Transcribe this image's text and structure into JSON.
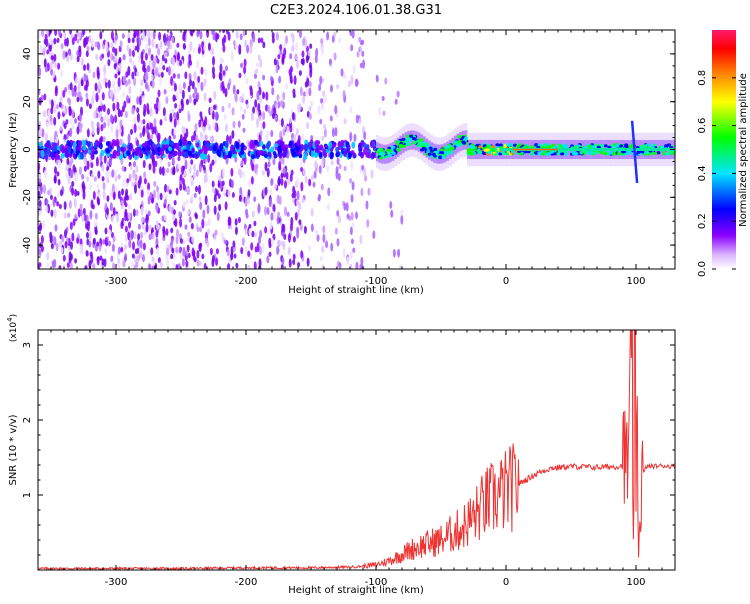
{
  "title": "C2E3.2024.106.01.38.G31",
  "chart_data": [
    {
      "type": "heatmap",
      "xlabel": "Height of straight line (km)",
      "ylabel": "Frequency (Hz)",
      "xlim": [
        -360,
        130
      ],
      "ylim": [
        -50,
        50
      ],
      "xticks": [
        -300,
        -200,
        -100,
        0,
        100
      ],
      "yticks": [
        -40,
        -20,
        0,
        20,
        40
      ],
      "colorbar": {
        "label": "Normalized spectral amplitude",
        "range": [
          0,
          1
        ],
        "ticks": [
          0.0,
          0.2,
          0.4,
          0.6,
          0.8
        ],
        "tick_labels": [
          "0.0",
          "0.2",
          "0.4",
          "0.6",
          "0.8"
        ],
        "colormap": [
          "#ffffff",
          "#8b00ff",
          "#0000ff",
          "#00e5ff",
          "#00ff00",
          "#ffff00",
          "#ff8000",
          "#ff0000",
          "#ff0080"
        ]
      },
      "signal_band": {
        "center_frequency_hz": 0,
        "noise_region_x": [
          -360,
          -100
        ],
        "strong_signal_x": [
          -100,
          130
        ],
        "feature_at_x": 97
      },
      "grid": false
    },
    {
      "type": "line",
      "xlabel": "Height of straight line (km)",
      "ylabel": "SNR (10 * v/v)",
      "y_multiplier_label": "(x10",
      "y_multiplier_exp": "4",
      "y_multiplier_close": ")",
      "xlim": [
        -360,
        130
      ],
      "ylim": [
        0,
        3.2
      ],
      "xticks": [
        -300,
        -200,
        -100,
        0,
        100
      ],
      "yticks": [
        1,
        2,
        3
      ],
      "series": [
        {
          "color": "#ee3333",
          "points": [
            [
              -360,
              0.02
            ],
            [
              -300,
              0.02
            ],
            [
              -250,
              0.02
            ],
            [
              -200,
              0.03
            ],
            [
              -150,
              0.03
            ],
            [
              -120,
              0.04
            ],
            [
              -110,
              0.05
            ],
            [
              -100,
              0.07
            ],
            [
              -90,
              0.12
            ],
            [
              -70,
              0.3
            ],
            [
              -50,
              0.4
            ],
            [
              -35,
              0.55
            ],
            [
              -25,
              0.7
            ],
            [
              -15,
              0.9
            ],
            [
              -5,
              1.0
            ],
            [
              5,
              1.1
            ],
            [
              15,
              1.2
            ],
            [
              25,
              1.3
            ],
            [
              35,
              1.36
            ],
            [
              50,
              1.38
            ],
            [
              70,
              1.37
            ],
            [
              85,
              1.38
            ],
            [
              92,
              1.4
            ],
            [
              95,
              1.7
            ],
            [
              97,
              2.9
            ],
            [
              98,
              0.3
            ],
            [
              99,
              3.2
            ],
            [
              100,
              0.6
            ],
            [
              101,
              2.5
            ],
            [
              102,
              0.2
            ],
            [
              104,
              1.2
            ],
            [
              108,
              1.38
            ],
            [
              120,
              1.39
            ],
            [
              130,
              1.38
            ]
          ]
        }
      ],
      "grid": false
    }
  ]
}
